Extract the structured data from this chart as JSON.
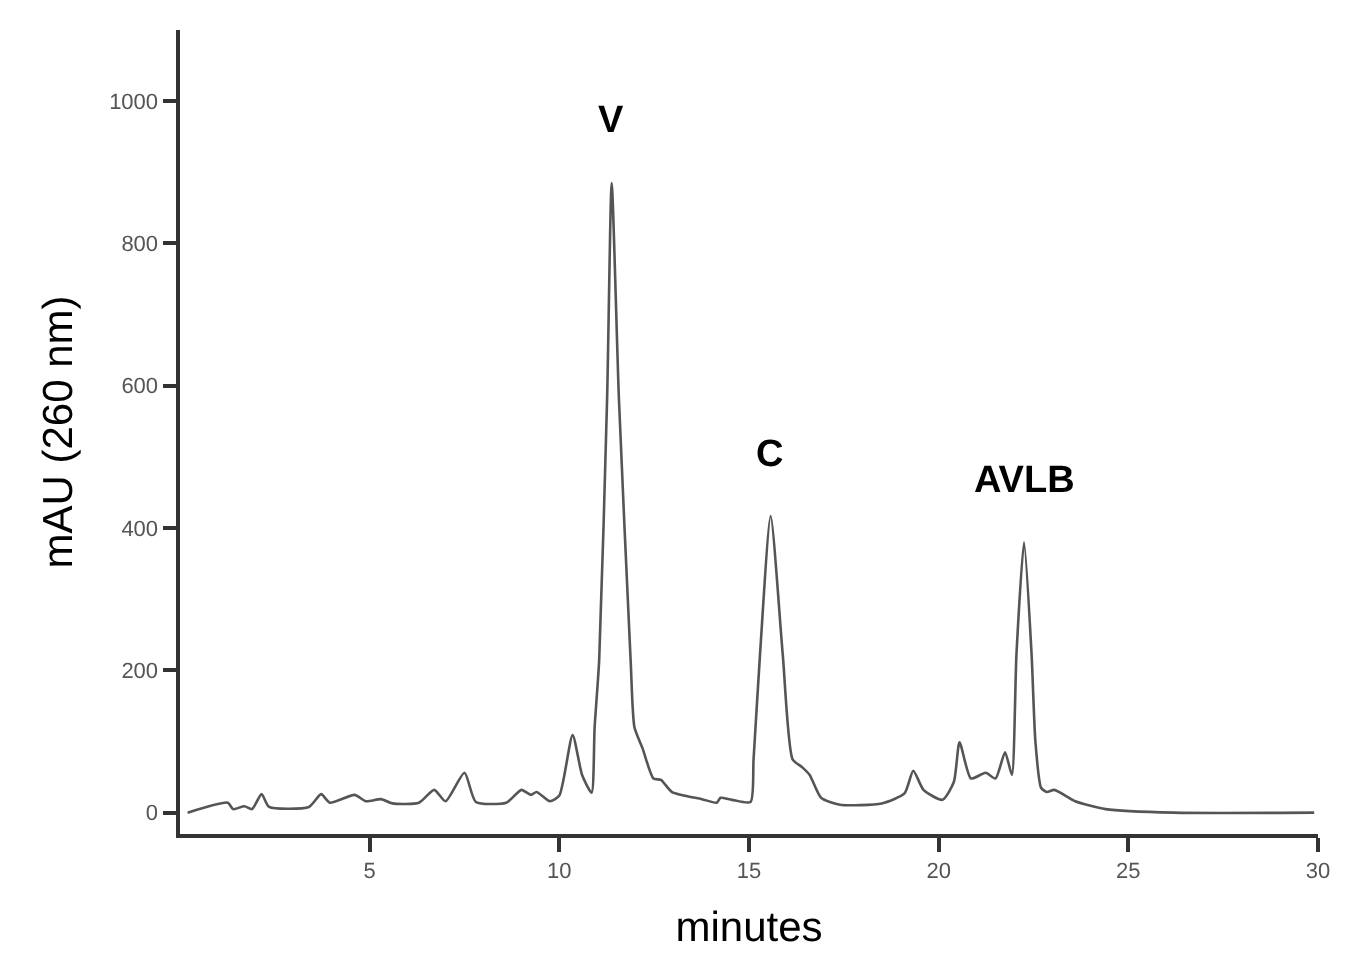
{
  "chart_data": {
    "type": "line",
    "xlabel": "minutes",
    "ylabel": "mAU (260 nm)",
    "x": [
      0.2,
      1.26,
      1.4,
      1.7,
      1.9,
      2.15,
      2.35,
      3.4,
      3.72,
      3.95,
      4.6,
      4.9,
      5.3,
      5.6,
      6.3,
      6.7,
      7.0,
      7.5,
      7.8,
      8.6,
      9.0,
      9.25,
      9.4,
      9.75,
      10.0,
      10.35,
      10.6,
      10.85,
      10.93,
      11.05,
      11.26,
      11.38,
      11.57,
      11.88,
      11.98,
      12.19,
      12.48,
      12.68,
      12.97,
      13.76,
      14.15,
      14.25,
      14.55,
      15.04,
      15.12,
      15.29,
      15.57,
      15.89,
      16.15,
      16.4,
      16.6,
      16.9,
      17.4,
      18.5,
      19.1,
      19.33,
      19.6,
      20.1,
      20.4,
      20.55,
      20.85,
      21.24,
      21.5,
      21.75,
      21.93,
      22.05,
      22.25,
      22.45,
      22.55,
      22.7,
      22.85,
      23.05,
      23.6,
      24.4,
      26.2,
      29.9
    ],
    "values": [
      0,
      14,
      5,
      9,
      5,
      26,
      8,
      8,
      26,
      14,
      25,
      16,
      19,
      13,
      14,
      32,
      16,
      56,
      15,
      14,
      32,
      25,
      29,
      16,
      24,
      109,
      53,
      28,
      120,
      214,
      583,
      885,
      583,
      214,
      120,
      91,
      48,
      46,
      29,
      19,
      14,
      21,
      18,
      15,
      75,
      222,
      417,
      222,
      75,
      64,
      53,
      21,
      11,
      13,
      27,
      59,
      32,
      18,
      43,
      99,
      48,
      56,
      48,
      85,
      53,
      222,
      380,
      222,
      100,
      35,
      29,
      32,
      16,
      5,
      0,
      0
    ],
    "color": "#555555",
    "xlim": [
      0,
      30
    ],
    "ylim": [
      -30,
      1100
    ],
    "xticks": [
      5,
      10,
      15,
      20,
      25,
      30
    ],
    "yticks": [
      0,
      200,
      400,
      600,
      800,
      1000
    ],
    "marker": "none",
    "line_style": "solid",
    "annotations": [
      {
        "text": "V",
        "x": 11.38,
        "y": 885
      },
      {
        "text": "C",
        "x": 15.57,
        "y": 417
      },
      {
        "text": "AVLB",
        "x": 22.25,
        "y": 380
      }
    ]
  }
}
